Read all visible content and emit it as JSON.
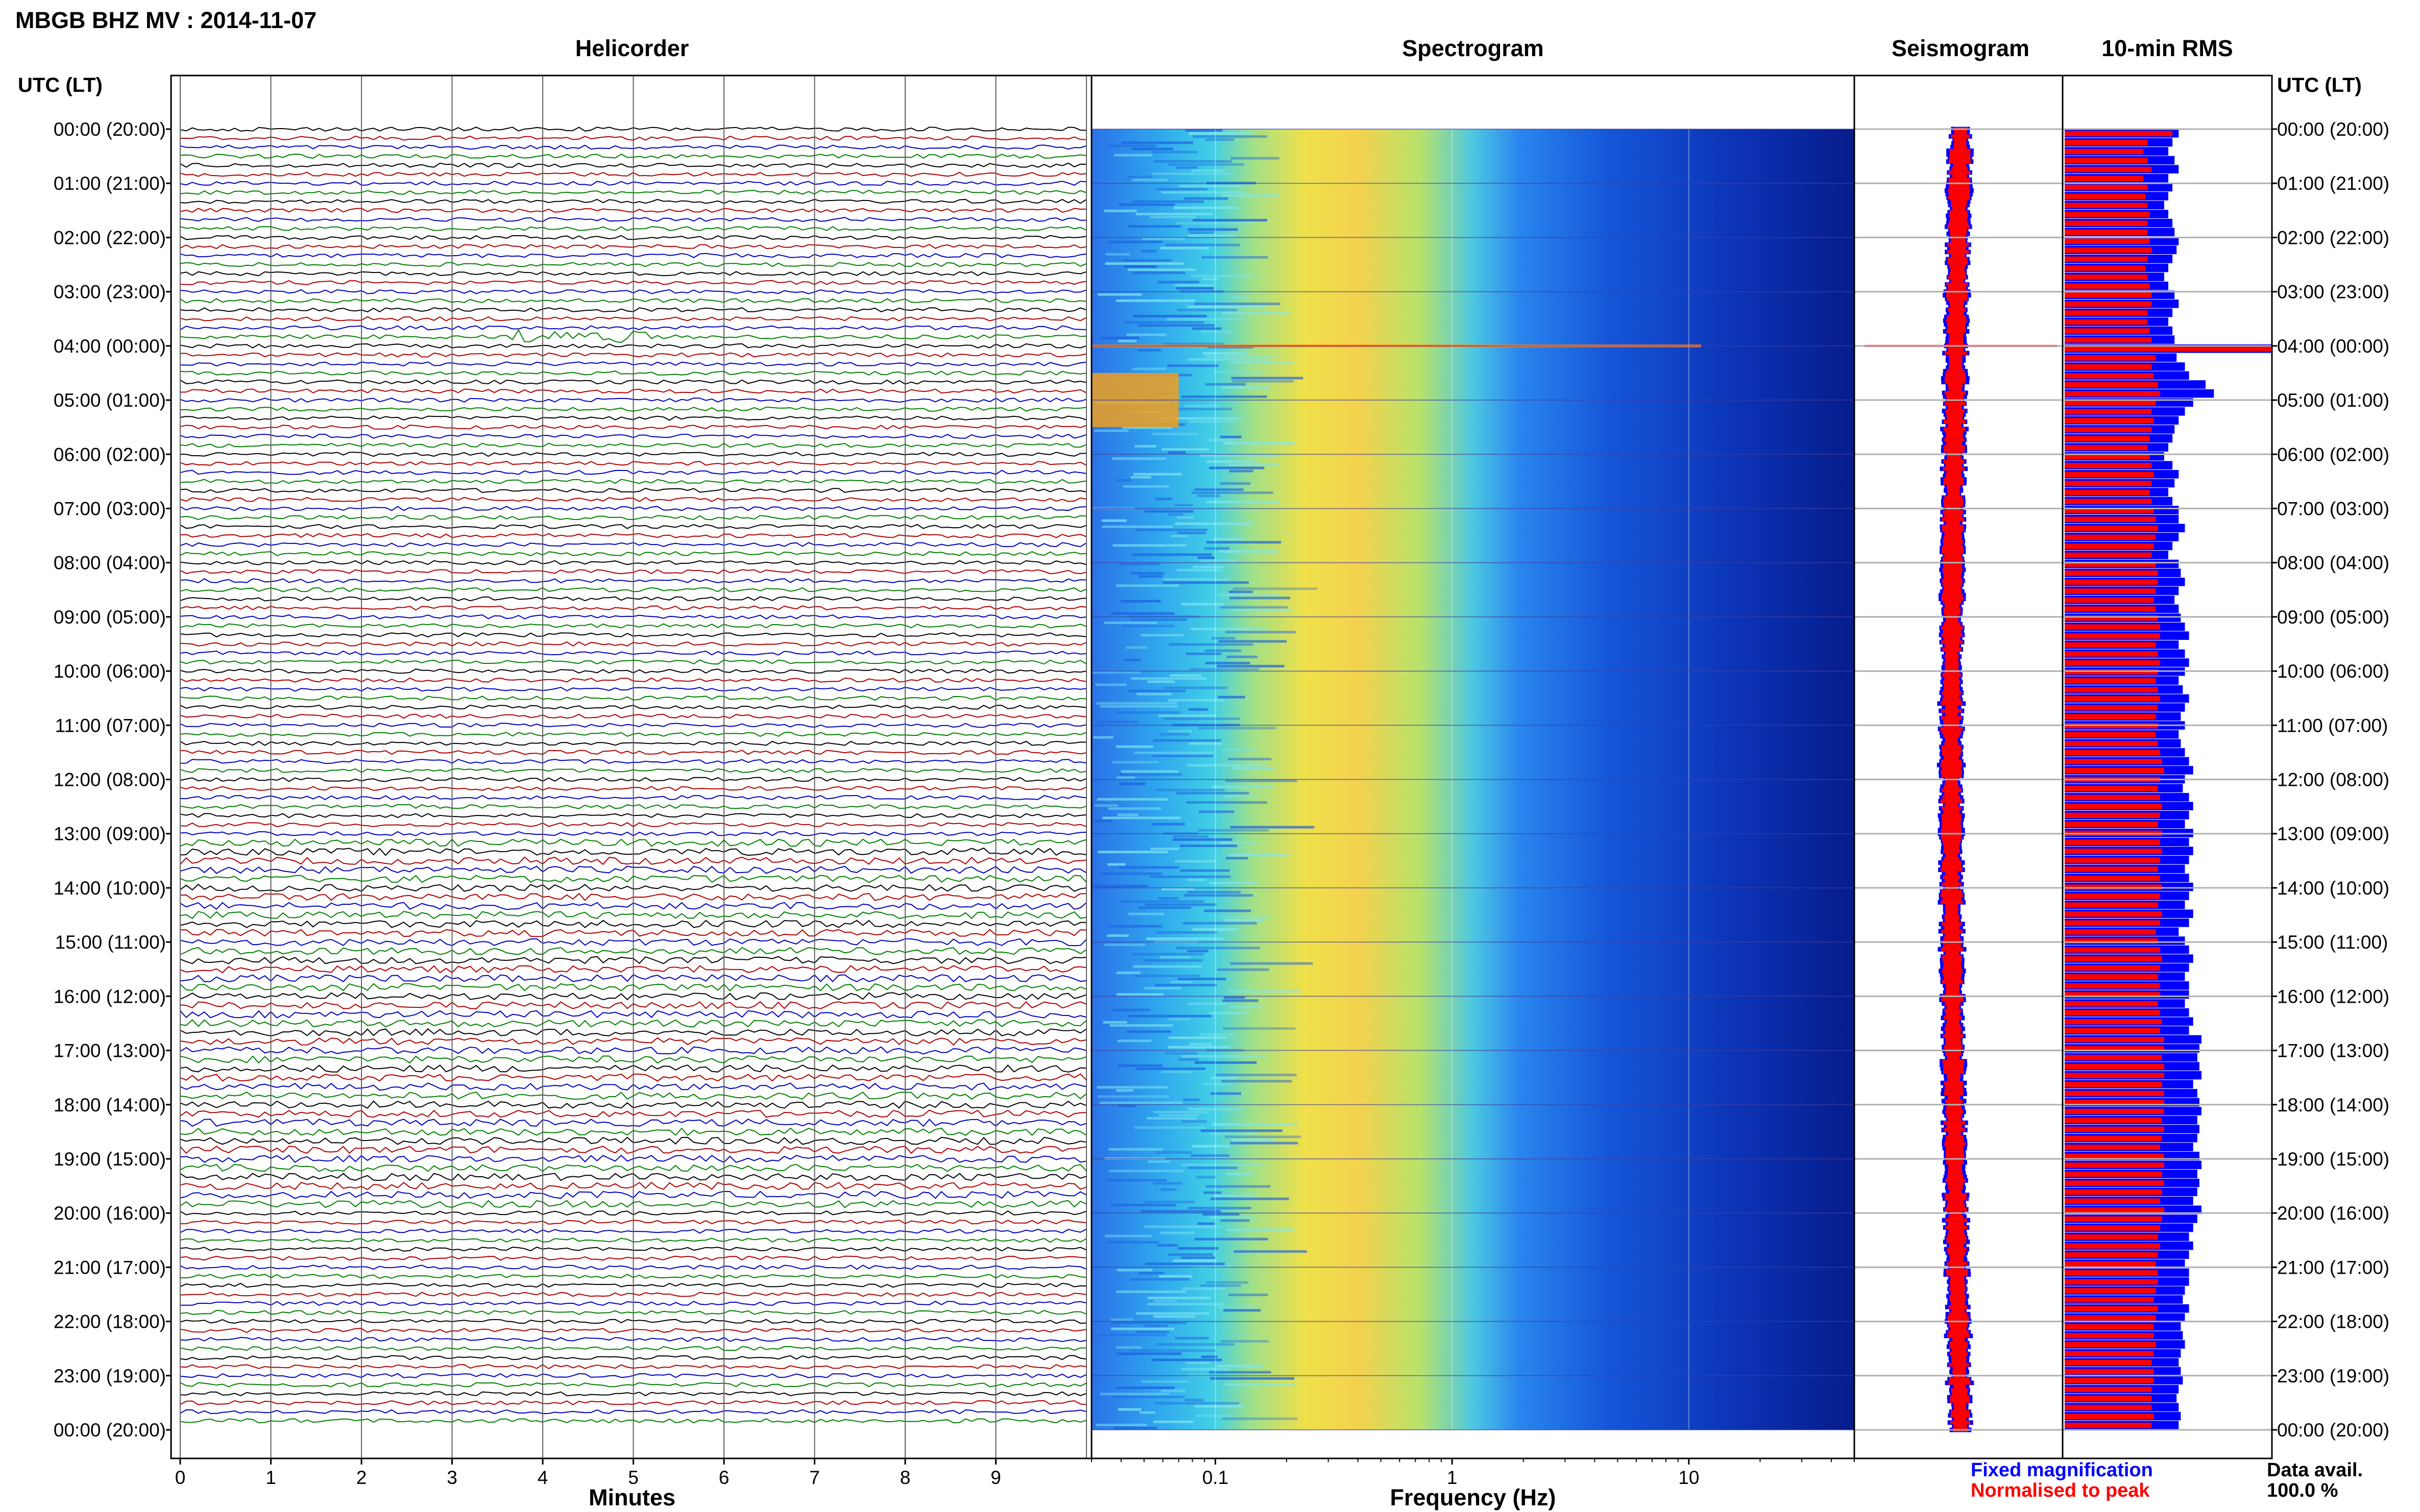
{
  "title": "MBGB BHZ MV : 2014-11-07",
  "panels": {
    "helicorder": "Helicorder",
    "spectrogram": "Spectrogram",
    "seismogram": "Seismogram",
    "rms": "10-min RMS"
  },
  "time_axis_label": "UTC (LT)",
  "legend": {
    "fixed": "Fixed magnification",
    "normalised": "Normalised to peak",
    "fixed_color": "#0000ff",
    "normalised_color": "#ff0000"
  },
  "data_avail": {
    "label": "Data avail.",
    "value": "100.0 %"
  },
  "colors": {
    "trace_cycle": [
      "#000000",
      "#b00000",
      "#0000c0",
      "#008000"
    ],
    "grid": "#b0b0b0"
  },
  "chart_data": [
    {
      "type": "line",
      "name": "helicorder",
      "title": "Helicorder",
      "xlabel": "Minutes",
      "x_ticks": [
        "0",
        "1",
        "2",
        "3",
        "4",
        "5",
        "6",
        "7",
        "8",
        "9"
      ],
      "xlim": [
        0,
        10
      ],
      "y_tick_labels": [
        "00:00 (20:00)",
        "01:00 (21:00)",
        "02:00 (22:00)",
        "03:00 (23:00)",
        "04:00 (00:00)",
        "05:00 (01:00)",
        "06:00 (02:00)",
        "07:00 (03:00)",
        "08:00 (04:00)",
        "09:00 (05:00)",
        "10:00 (06:00)",
        "11:00 (07:00)",
        "12:00 (08:00)",
        "13:00 (09:00)",
        "14:00 (10:00)",
        "15:00 (11:00)",
        "16:00 (12:00)",
        "17:00 (13:00)",
        "18:00 (14:00)",
        "19:00 (15:00)",
        "20:00 (16:00)",
        "21:00 (17:00)",
        "22:00 (18:00)",
        "23:00 (19:00)",
        "00:00 (20:00)"
      ],
      "traces_per_hour": 6,
      "events": [
        {
          "time_utc": "03:50",
          "minute": 3.6,
          "note": "large green-trace event"
        },
        {
          "time_utc": "04:00",
          "minute": 0.0,
          "note": "teleseismic/regional signal visible across spectrogram and seismogram"
        }
      ]
    },
    {
      "type": "heatmap",
      "name": "spectrogram",
      "title": "Spectrogram",
      "xlabel": "Frequency (Hz)",
      "x_ticks": [
        "0.1",
        "1",
        "10"
      ],
      "x_scale": "log",
      "xlim": [
        0.03,
        50
      ],
      "yrange_utc": [
        "00:00",
        "24:00"
      ],
      "features": [
        {
          "band_hz": [
            0.15,
            1.0
          ],
          "level": "high",
          "note": "microseism peak"
        },
        {
          "band_hz": [
            0.03,
            0.07
          ],
          "time_utc": [
            "04:30",
            "05:30"
          ],
          "level": "high"
        },
        {
          "band_hz": [
            2,
            50
          ],
          "level": "low"
        }
      ]
    },
    {
      "type": "line",
      "name": "seismogram",
      "title": "Seismogram",
      "series": [
        {
          "name": "Normalised to peak"
        },
        {
          "name": "Fixed magnification"
        }
      ],
      "peak_time_utc": "04:00"
    },
    {
      "type": "bar",
      "name": "rms",
      "title": "10-min RMS",
      "orientation": "horizontal",
      "bins": 145,
      "series": [
        {
          "name": "Fixed magnification",
          "values_relative": [
            0.55,
            0.52,
            0.5,
            0.53,
            0.55,
            0.5,
            0.52,
            0.5,
            0.48,
            0.5,
            0.52,
            0.53,
            0.55,
            0.54,
            0.52,
            0.5,
            0.48,
            0.5,
            0.53,
            0.55,
            0.52,
            0.5,
            0.52,
            0.53,
            1.0,
            0.54,
            0.58,
            0.6,
            0.68,
            0.72,
            0.62,
            0.58,
            0.55,
            0.53,
            0.52,
            0.5,
            0.48,
            0.52,
            0.55,
            0.53,
            0.5,
            0.52,
            0.55,
            0.55,
            0.58,
            0.55,
            0.52,
            0.5,
            0.55,
            0.56,
            0.58,
            0.55,
            0.53,
            0.55,
            0.56,
            0.58,
            0.6,
            0.55,
            0.58,
            0.6,
            0.58,
            0.55,
            0.57,
            0.6,
            0.58,
            0.56,
            0.58,
            0.55,
            0.56,
            0.58,
            0.6,
            0.62,
            0.58,
            0.57,
            0.6,
            0.62,
            0.6,
            0.58,
            0.62,
            0.6,
            0.62,
            0.6,
            0.58,
            0.6,
            0.62,
            0.6,
            0.58,
            0.62,
            0.6,
            0.55,
            0.58,
            0.6,
            0.62,
            0.6,
            0.58,
            0.6,
            0.6,
            0.58,
            0.6,
            0.62,
            0.6,
            0.66,
            0.65,
            0.64,
            0.65,
            0.66,
            0.62,
            0.64,
            0.65,
            0.66,
            0.64,
            0.65,
            0.64,
            0.62,
            0.65,
            0.66,
            0.64,
            0.65,
            0.64,
            0.62,
            0.66,
            0.64,
            0.62,
            0.6,
            0.62,
            0.6,
            0.58,
            0.6,
            0.6,
            0.58,
            0.57,
            0.6,
            0.58,
            0.56,
            0.57,
            0.58,
            0.56,
            0.55,
            0.56,
            0.57,
            0.55,
            0.54,
            0.55,
            0.56,
            0.55
          ]
        },
        {
          "name": "Normalised to peak",
          "values_relative": [
            0.52,
            0.4,
            0.38,
            0.4,
            0.42,
            0.38,
            0.4,
            0.39,
            0.4,
            0.41,
            0.4,
            0.4,
            0.41,
            0.42,
            0.4,
            0.39,
            0.4,
            0.41,
            0.42,
            0.42,
            0.4,
            0.4,
            0.41,
            0.42,
            1.0,
            0.44,
            0.42,
            0.43,
            0.45,
            0.46,
            0.44,
            0.42,
            0.43,
            0.42,
            0.41,
            0.4,
            0.41,
            0.42,
            0.43,
            0.42,
            0.41,
            0.42,
            0.43,
            0.44,
            0.45,
            0.44,
            0.43,
            0.42,
            0.44,
            0.45,
            0.45,
            0.44,
            0.43,
            0.44,
            0.45,
            0.46,
            0.46,
            0.44,
            0.45,
            0.46,
            0.45,
            0.44,
            0.45,
            0.46,
            0.45,
            0.44,
            0.45,
            0.44,
            0.45,
            0.46,
            0.47,
            0.48,
            0.46,
            0.45,
            0.46,
            0.47,
            0.46,
            0.45,
            0.47,
            0.46,
            0.47,
            0.46,
            0.45,
            0.46,
            0.47,
            0.46,
            0.45,
            0.47,
            0.46,
            0.44,
            0.45,
            0.46,
            0.47,
            0.46,
            0.45,
            0.46,
            0.46,
            0.45,
            0.46,
            0.47,
            0.46,
            0.48,
            0.48,
            0.47,
            0.48,
            0.48,
            0.47,
            0.48,
            0.48,
            0.48,
            0.47,
            0.48,
            0.47,
            0.46,
            0.48,
            0.48,
            0.47,
            0.48,
            0.47,
            0.46,
            0.48,
            0.47,
            0.46,
            0.45,
            0.46,
            0.45,
            0.44,
            0.45,
            0.45,
            0.44,
            0.43,
            0.45,
            0.44,
            0.43,
            0.43,
            0.44,
            0.43,
            0.42,
            0.43,
            0.43,
            0.42,
            0.42,
            0.42,
            0.43,
            0.42
          ]
        }
      ]
    }
  ]
}
